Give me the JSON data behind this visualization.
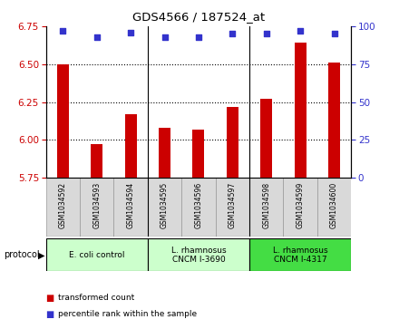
{
  "title": "GDS4566 / 187524_at",
  "samples": [
    "GSM1034592",
    "GSM1034593",
    "GSM1034594",
    "GSM1034595",
    "GSM1034596",
    "GSM1034597",
    "GSM1034598",
    "GSM1034599",
    "GSM1034600"
  ],
  "transformed_count": [
    6.5,
    5.97,
    6.17,
    6.08,
    6.07,
    6.22,
    6.27,
    6.64,
    6.51
  ],
  "percentile_rank": [
    97,
    93,
    96,
    93,
    93,
    95,
    95,
    97,
    95
  ],
  "ylim_left": [
    5.75,
    6.75
  ],
  "ylim_right": [
    0,
    100
  ],
  "yticks_left": [
    5.75,
    6.0,
    6.25,
    6.5,
    6.75
  ],
  "yticks_right": [
    0,
    25,
    50,
    75,
    100
  ],
  "bar_color": "#cc0000",
  "dot_color": "#3333cc",
  "group_starts": [
    0,
    3,
    6
  ],
  "group_ends": [
    3,
    6,
    9
  ],
  "group_labels": [
    "E. coli control",
    "L. rhamnosus\nCNCM I-3690",
    "L. rhamnosus\nCNCM I-4317"
  ],
  "group_colors": [
    "#ccffcc",
    "#ccffcc",
    "#44dd44"
  ],
  "legend_labels": [
    "transformed count",
    "percentile rank within the sample"
  ],
  "legend_colors": [
    "#cc0000",
    "#3333cc"
  ],
  "grid_yticks": [
    6.0,
    6.25,
    6.5
  ],
  "bar_width": 0.35,
  "cell_color": "#d9d9d9",
  "protocol_text": "protocol"
}
